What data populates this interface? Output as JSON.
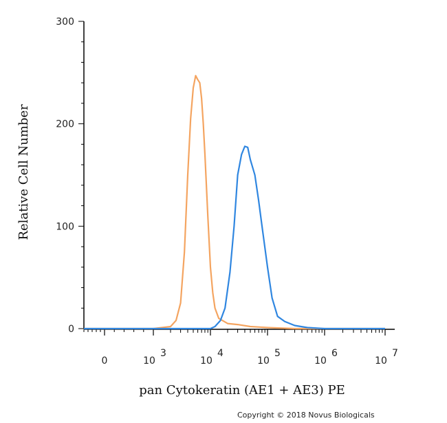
{
  "chart_data": {
    "type": "line",
    "title": "",
    "xlabel": "pan Cytokeratin (AE1 + AE3) PE",
    "ylabel": "Relative Cell Number",
    "xscale": "biexponential (log beyond 10^3)",
    "xlim": [
      -1000,
      10000000
    ],
    "ylim": [
      0,
      300
    ],
    "y_ticks": [
      0,
      100,
      200,
      300
    ],
    "x_ticks": [
      {
        "value": 0,
        "base": "0",
        "exp": ""
      },
      {
        "value": 1000,
        "base": "10",
        "exp": "3"
      },
      {
        "value": 10000,
        "base": "10",
        "exp": "4"
      },
      {
        "value": 100000,
        "base": "10",
        "exp": "5"
      },
      {
        "value": 1000000,
        "base": "10",
        "exp": "6"
      },
      {
        "value": 10000000,
        "base": "10",
        "exp": "7"
      }
    ],
    "grid": false,
    "legend": "none",
    "series": [
      {
        "color": "#f4a460",
        "points": [
          [
            -1000,
            0
          ],
          [
            1000,
            0
          ],
          [
            2000,
            2
          ],
          [
            2500,
            8
          ],
          [
            3000,
            25
          ],
          [
            3500,
            75
          ],
          [
            4000,
            150
          ],
          [
            4500,
            205
          ],
          [
            5000,
            235
          ],
          [
            5500,
            247
          ],
          [
            6000,
            243
          ],
          [
            6500,
            240
          ],
          [
            7000,
            225
          ],
          [
            7500,
            200
          ],
          [
            8000,
            170
          ],
          [
            9000,
            110
          ],
          [
            10000,
            60
          ],
          [
            11000,
            35
          ],
          [
            12000,
            20
          ],
          [
            14000,
            10
          ],
          [
            20000,
            5
          ],
          [
            30000,
            4
          ],
          [
            50000,
            2
          ],
          [
            100000,
            1
          ],
          [
            300000,
            0
          ],
          [
            10000000,
            0
          ]
        ]
      },
      {
        "color": "#2f86e0",
        "points": [
          [
            -1000,
            0
          ],
          [
            10000,
            0
          ],
          [
            12000,
            2
          ],
          [
            15000,
            8
          ],
          [
            18000,
            20
          ],
          [
            22000,
            55
          ],
          [
            26000,
            100
          ],
          [
            30000,
            150
          ],
          [
            35000,
            170
          ],
          [
            40000,
            178
          ],
          [
            45000,
            177
          ],
          [
            50000,
            165
          ],
          [
            60000,
            150
          ],
          [
            70000,
            125
          ],
          [
            80000,
            100
          ],
          [
            100000,
            60
          ],
          [
            120000,
            30
          ],
          [
            150000,
            12
          ],
          [
            200000,
            7
          ],
          [
            300000,
            3
          ],
          [
            500000,
            1
          ],
          [
            1000000,
            0
          ],
          [
            10000000,
            0
          ]
        ]
      }
    ]
  },
  "footer": {
    "copyright": "Copyright © 2018 Novus Biologicals"
  }
}
